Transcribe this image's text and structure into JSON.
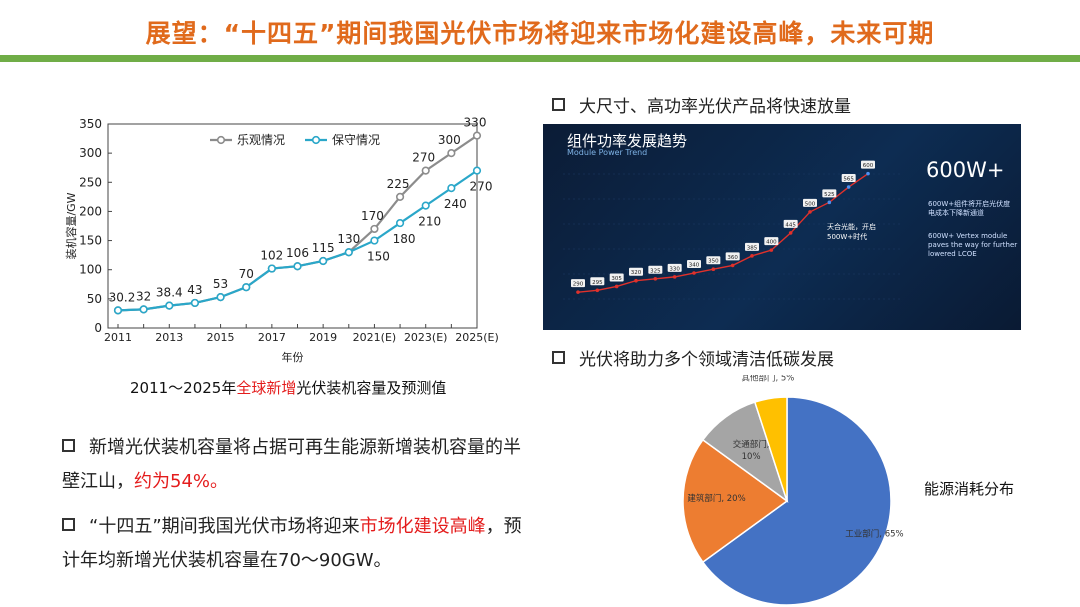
{
  "title": "展望：“十四五”期间我国光伏市场将迎来市场化建设高峰，未来可期",
  "line_chart_caption": {
    "prefix": "2011～2025年",
    "highlight": "全球新增",
    "suffix": "光伏装机容量及预测值"
  },
  "bullets": [
    {
      "a": "新增光伏装机容量将占据可再生能源新增装机容量的半壁江山，",
      "red": "约为54%。",
      "b": ""
    },
    {
      "a": "“十四五”期间我国光伏市场将迎来",
      "red": "市场化建设高峰",
      "b": "，预计年均新增光伏装机容量在70～90GW。"
    }
  ],
  "right_headings": [
    "大尺寸、高功率光伏产品将快速放量",
    "光伏将助力多个领域清洁低碳发展"
  ],
  "photo": {
    "title": "组件功率发展趋势",
    "subtitle": "Module Power Trend",
    "big_label": "600W+",
    "note1": "600W+组件将开启光伏度电成本下降新通道",
    "note2": "600W+ Vertex module paves the way for further lowered LCOE",
    "callout": "天合光能，开启500W+时代",
    "values": [
      "290",
      "295",
      "305",
      "320",
      "325",
      "330",
      "340",
      "350",
      "360",
      "385",
      "400",
      "445",
      "500",
      "525",
      "565",
      "600"
    ]
  },
  "pie_legend": "能源消耗分布",
  "chart_data": [
    {
      "type": "line",
      "title": "",
      "xlabel": "年份",
      "ylabel": "装机容量/GW",
      "ylim": [
        0,
        350
      ],
      "yticks": [
        0,
        50,
        100,
        150,
        200,
        250,
        300,
        350
      ],
      "x": [
        "2011",
        "2012",
        "2013",
        "2014",
        "2015",
        "2016",
        "2017",
        "2018",
        "2019",
        "2020",
        "2021(E)",
        "2022(E)",
        "2023(E)",
        "2024(E)",
        "2025(E)"
      ],
      "xtick_labels": [
        "2011",
        "2013",
        "2015",
        "2017",
        "2019",
        "2021(E)",
        "2023(E)",
        "2025(E)"
      ],
      "series": [
        {
          "name": "乐观情况",
          "color": "#8c8c8c",
          "values": [
            30.2,
            32,
            38.4,
            43,
            53,
            70,
            102,
            106,
            115,
            130,
            170,
            225,
            270,
            300,
            330
          ]
        },
        {
          "name": "保守情况",
          "color": "#2aa7c9",
          "values": [
            30.2,
            32,
            38.4,
            43,
            53,
            70,
            102,
            106,
            115,
            130,
            150,
            180,
            210,
            240,
            270
          ]
        }
      ],
      "labels_shared": [
        "30.2",
        "32",
        "38.4",
        "43",
        "53",
        "70",
        "102",
        "106",
        "115",
        "130"
      ],
      "labels_optimistic": [
        "170",
        "225",
        "270",
        "300",
        "330"
      ],
      "labels_conservative": [
        "150",
        "180",
        "210",
        "240",
        "270"
      ]
    },
    {
      "type": "pie",
      "slices": [
        {
          "label": "工业部门, 65%",
          "value": 65,
          "color": "#4472c4"
        },
        {
          "label": "建筑部门, 20%",
          "value": 20,
          "color": "#ed7d31"
        },
        {
          "label": "交通部门, 10%",
          "value": 10,
          "color": "#a5a5a5"
        },
        {
          "label": "其他部门, 5%",
          "value": 5,
          "color": "#ffc000"
        }
      ]
    }
  ]
}
